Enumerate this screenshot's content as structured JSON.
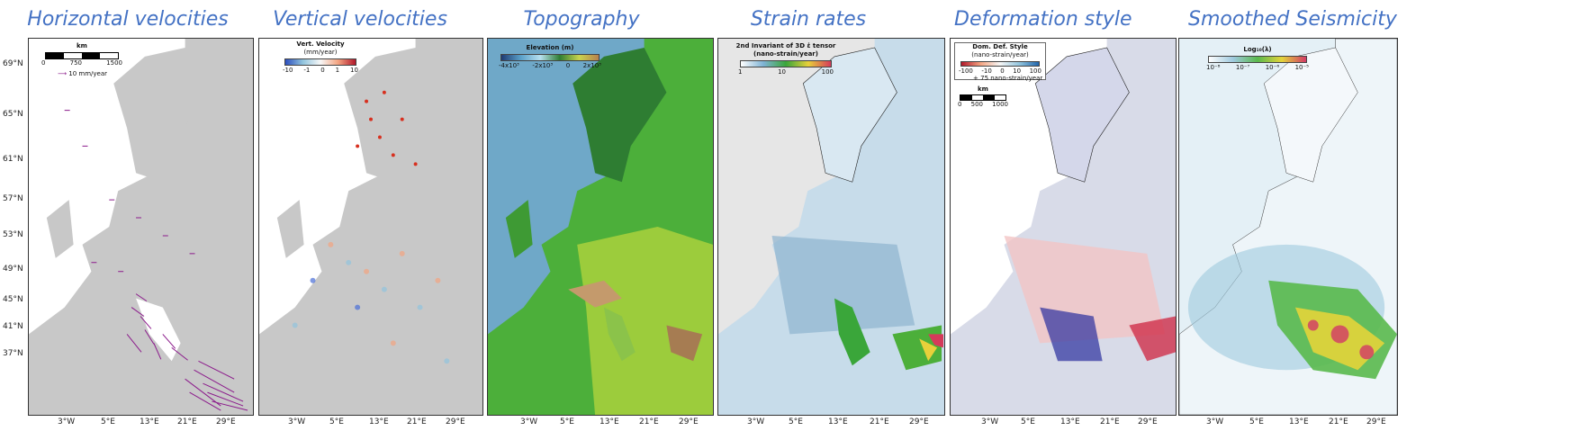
{
  "panels": [
    {
      "title": "Horizontal velocities"
    },
    {
      "title": "Vertical velocities"
    },
    {
      "title": "Topography"
    },
    {
      "title": "Strain rates"
    },
    {
      "title": "Deformation style"
    },
    {
      "title": "Smoothed Seismicity"
    }
  ],
  "lat_labels": [
    "69°N",
    "65°N",
    "61°N",
    "57°N",
    "53°N",
    "49°N",
    "45°N",
    "41°N",
    "37°N"
  ],
  "lon_labels": [
    "3°W",
    "5°E",
    "13°E",
    "21°E",
    "29°E"
  ],
  "legends": {
    "horizontal": {
      "scale_unit": "km",
      "scale_ticks": [
        "0",
        "750",
        "1500"
      ],
      "arrow_label": "10 mm/year"
    },
    "vertical": {
      "title": "Vert. Velocity",
      "unit": "(mm/year)",
      "ticks": [
        "-10",
        "-1",
        "0",
        "1",
        "10"
      ]
    },
    "topography": {
      "title": "Elevation (m)",
      "ticks": [
        "-4x10³",
        "-2x10³",
        "0",
        "2x10³"
      ]
    },
    "strain": {
      "title": "2nd Invariant of 3D ε̇ tensor",
      "unit": "(nano-strain/year)",
      "ticks": [
        "1",
        "10",
        "100"
      ]
    },
    "deformation": {
      "title": "Dom. Def. Style",
      "unit": "(nano-strain/year)",
      "ticks": [
        "-100",
        "-10",
        "0",
        "10",
        "100"
      ],
      "arrow_label": "75 nano-strain/year",
      "scale_unit": "km",
      "scale_ticks": [
        "0",
        "500",
        "1000"
      ]
    },
    "seismicity": {
      "title": "Log₁₀(λ)",
      "ticks": [
        "10⁻⁸",
        "10⁻⁷",
        "10⁻⁶",
        "10⁻⁵"
      ]
    }
  },
  "colors": {
    "title": "#4472c4",
    "land_grey": "#c8c8c8",
    "sea_white": "#ffffff",
    "velocity_vectors": "#8b1a8b",
    "uplift": "#d7301f",
    "subsidence": "#4a6fd8"
  }
}
